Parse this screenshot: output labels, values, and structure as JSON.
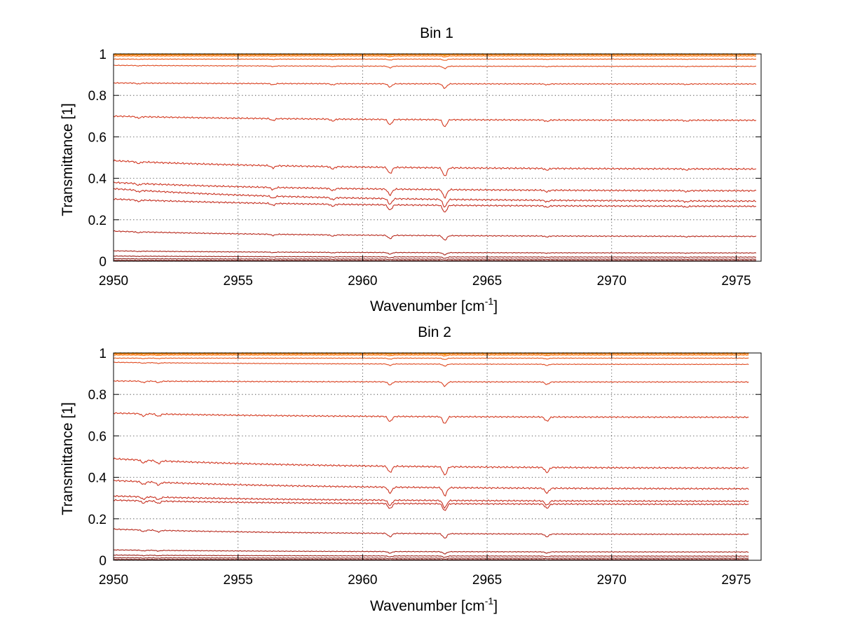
{
  "chart_data": [
    {
      "type": "line",
      "title": "Bin 1",
      "xlabel": "Wavenumber [cm",
      "xlabel_sup": "-1",
      "xlabel_end": "]",
      "ylabel": "Transmittance [1]",
      "xlim": [
        2950,
        2976
      ],
      "ylim": [
        0,
        1
      ],
      "xticks": [
        2950,
        2955,
        2960,
        2965,
        2970,
        2975
      ],
      "xtick_labels": [
        "2950",
        "2955",
        "2960",
        "2965",
        "2970",
        "2975"
      ],
      "yticks": [
        0,
        0.2,
        0.4,
        0.6,
        0.8,
        1
      ],
      "ytick_labels": [
        "0",
        "0.2",
        "0.4",
        "0.6",
        "0.8",
        "1"
      ],
      "grid": true,
      "x_range": [
        2950,
        2975.8
      ],
      "absorption_lines": [
        {
          "x": 2951.0,
          "depth": 0.15
        },
        {
          "x": 2956.4,
          "depth": 0.2
        },
        {
          "x": 2958.8,
          "depth": 0.2
        },
        {
          "x": 2961.1,
          "depth": 0.55
        },
        {
          "x": 2963.3,
          "depth": 0.75
        },
        {
          "x": 2967.4,
          "depth": 0.15
        },
        {
          "x": 2973.0,
          "depth": 0.1
        }
      ],
      "series": [
        {
          "start": 1.0,
          "end": 1.0,
          "color": "#ff8c00"
        },
        {
          "start": 0.998,
          "end": 0.998,
          "color": "#ffa500"
        },
        {
          "start": 0.995,
          "end": 0.996,
          "color": "#ff7f0e"
        },
        {
          "start": 0.99,
          "end": 0.99,
          "color": "#ff6a00"
        },
        {
          "start": 0.975,
          "end": 0.975,
          "color": "#e85a1a"
        },
        {
          "start": 0.945,
          "end": 0.94,
          "color": "#e04a1f"
        },
        {
          "start": 0.86,
          "end": 0.855,
          "color": "#d94020"
        },
        {
          "start": 0.7,
          "end": 0.68,
          "color": "#d43a20"
        },
        {
          "start": 0.485,
          "end": 0.445,
          "color": "#d03520"
        },
        {
          "start": 0.38,
          "end": 0.34,
          "color": "#cc3320"
        },
        {
          "start": 0.35,
          "end": 0.29,
          "color": "#c83020"
        },
        {
          "start": 0.3,
          "end": 0.265,
          "color": "#c42e20"
        },
        {
          "start": 0.145,
          "end": 0.12,
          "color": "#b82a1e"
        },
        {
          "start": 0.05,
          "end": 0.04,
          "color": "#a8241a"
        },
        {
          "start": 0.025,
          "end": 0.02,
          "color": "#981e16"
        },
        {
          "start": 0.012,
          "end": 0.01,
          "color": "#881a14"
        },
        {
          "start": 0.004,
          "end": 0.003,
          "color": "#781610"
        }
      ]
    },
    {
      "type": "line",
      "title": "Bin 2",
      "xlabel": "Wavenumber [cm",
      "xlabel_sup": "-1",
      "xlabel_end": "]",
      "ylabel": "Transmittance [1]",
      "xlim": [
        2950,
        2976
      ],
      "ylim": [
        0,
        1
      ],
      "xticks": [
        2950,
        2955,
        2960,
        2965,
        2970,
        2975
      ],
      "xtick_labels": [
        "2950",
        "2955",
        "2960",
        "2965",
        "2970",
        "2975"
      ],
      "yticks": [
        0,
        0.2,
        0.4,
        0.6,
        0.8,
        1
      ],
      "ytick_labels": [
        "0",
        "0.2",
        "0.4",
        "0.6",
        "0.8",
        "1"
      ],
      "grid": true,
      "x_range": [
        2950,
        2975.5
      ],
      "absorption_lines": [
        {
          "x": 2951.2,
          "depth": 0.25
        },
        {
          "x": 2951.8,
          "depth": 0.25
        },
        {
          "x": 2961.1,
          "depth": 0.55
        },
        {
          "x": 2963.3,
          "depth": 0.75
        },
        {
          "x": 2967.4,
          "depth": 0.45
        }
      ],
      "series": [
        {
          "start": 1.0,
          "end": 1.0,
          "color": "#ff8c00"
        },
        {
          "start": 0.998,
          "end": 0.998,
          "color": "#ffa500"
        },
        {
          "start": 0.995,
          "end": 0.996,
          "color": "#ff7f0e"
        },
        {
          "start": 0.99,
          "end": 0.99,
          "color": "#ff6a00"
        },
        {
          "start": 0.975,
          "end": 0.975,
          "color": "#e85a1a"
        },
        {
          "start": 0.955,
          "end": 0.945,
          "color": "#e04a1f"
        },
        {
          "start": 0.865,
          "end": 0.86,
          "color": "#d94020"
        },
        {
          "start": 0.71,
          "end": 0.69,
          "color": "#d43a20"
        },
        {
          "start": 0.49,
          "end": 0.445,
          "color": "#d03520"
        },
        {
          "start": 0.385,
          "end": 0.345,
          "color": "#cc3320"
        },
        {
          "start": 0.31,
          "end": 0.285,
          "color": "#c83020"
        },
        {
          "start": 0.29,
          "end": 0.27,
          "color": "#c42e20"
        },
        {
          "start": 0.15,
          "end": 0.125,
          "color": "#b82a1e"
        },
        {
          "start": 0.05,
          "end": 0.04,
          "color": "#a8241a"
        },
        {
          "start": 0.025,
          "end": 0.02,
          "color": "#981e16"
        },
        {
          "start": 0.012,
          "end": 0.01,
          "color": "#881a14"
        },
        {
          "start": 0.004,
          "end": 0.003,
          "color": "#781610"
        }
      ]
    }
  ]
}
